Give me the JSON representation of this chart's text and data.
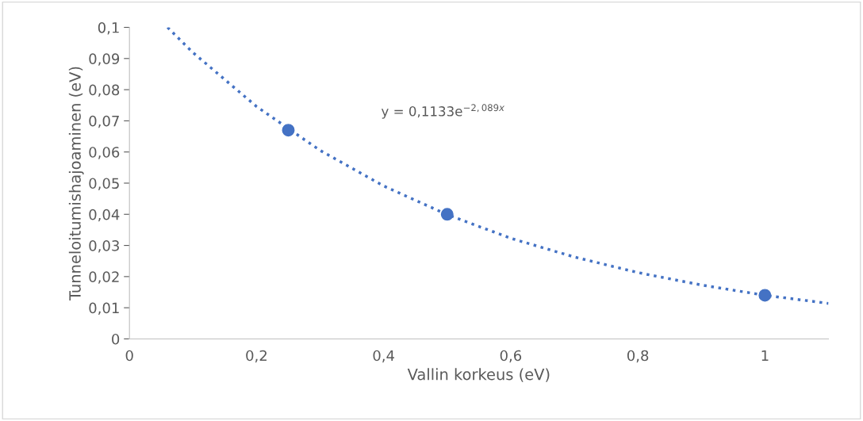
{
  "chart_data": {
    "type": "scatter",
    "xlabel": "Vallin korkeus (eV)",
    "ylabel": "Tunneloitumishajoaminen (eV)",
    "series": [
      {
        "color": "#4472c4",
        "marker": "circle",
        "x": [
          0.25,
          0.5,
          1.0
        ],
        "values": [
          0.067,
          0.04,
          0.014
        ]
      },
      {
        "type": "line",
        "color": "#4472c4",
        "line_style": "dotted",
        "marker": "none",
        "x": [
          0.06,
          0.1,
          0.2,
          0.3,
          0.4,
          0.5,
          0.6,
          0.7,
          0.8,
          0.9,
          1.0,
          1.1
        ],
        "values": [
          0.1,
          0.0919,
          0.0746,
          0.0605,
          0.0491,
          0.0399,
          0.0323,
          0.0263,
          0.0213,
          0.0173,
          0.014,
          0.0114
        ]
      }
    ],
    "annotations": [
      "y = 0,1133e$^{−2,089x}$"
    ],
    "xlim": [
      0,
      1.1
    ],
    "ylim": [
      0,
      0.1
    ],
    "xticks": [
      0,
      {
        "value": 0.2,
        "label": "0,2"
      },
      {
        "value": 0.4,
        "label": "0,4"
      },
      {
        "value": 0.6,
        "label": "0,6"
      },
      {
        "value": 0.8,
        "label": "0,8"
      },
      1
    ],
    "yticks": [
      0,
      {
        "value": 0.01,
        "label": "0,01"
      },
      {
        "value": 0.02,
        "label": "0,02"
      },
      {
        "value": 0.03,
        "label": "0,03"
      },
      {
        "value": 0.04,
        "label": "0,04"
      },
      {
        "value": 0.05,
        "label": "0,05"
      },
      {
        "value": 0.06,
        "label": "0,06"
      },
      {
        "value": 0.07,
        "label": "0,07"
      },
      {
        "value": 0.08,
        "label": "0,08"
      },
      {
        "value": 0.09,
        "label": "0,09"
      },
      {
        "value": 0.1,
        "label": "0,1"
      }
    ],
    "grid": false,
    "legend": false
  }
}
